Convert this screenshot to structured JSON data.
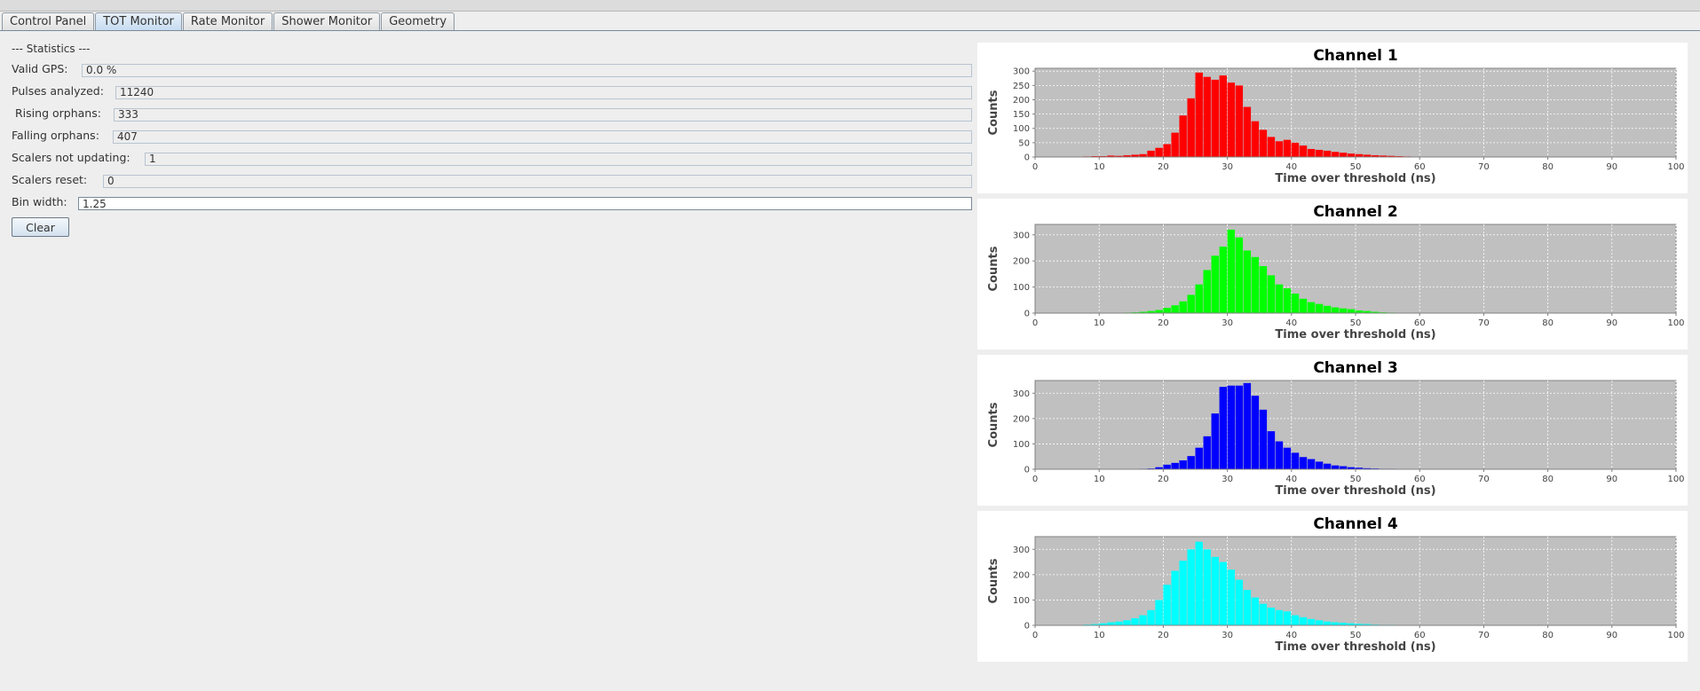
{
  "tabs": [
    {
      "label": "Control Panel",
      "active": false
    },
    {
      "label": "TOT Monitor",
      "active": true
    },
    {
      "label": "Rate Monitor",
      "active": false
    },
    {
      "label": "Shower Monitor",
      "active": false
    },
    {
      "label": "Geometry",
      "active": false
    }
  ],
  "statistics": {
    "heading": "--- Statistics ---",
    "valid_gps": {
      "label": "Valid GPS:",
      "value": "0.0 %"
    },
    "pulses_analyzed": {
      "label": "Pulses analyzed:",
      "value": "11240"
    },
    "rising_orphans": {
      "label": "Rising orphans:",
      "value": "333"
    },
    "falling_orphans": {
      "label": "Falling orphans:",
      "value": "407"
    },
    "scalers_not_updating": {
      "label": "Scalers not updating:",
      "value": "1"
    },
    "scalers_reset": {
      "label": "Scalers reset:",
      "value": "0"
    },
    "bin_width": {
      "label": "Bin width:",
      "value": "1.25"
    },
    "clear_label": "Clear"
  },
  "chart_data": [
    {
      "type": "bar",
      "title": "Channel 1",
      "xlabel": "Time over threshold (ns)",
      "ylabel": "Counts",
      "color": "#ff0000",
      "bin_width": 1.25,
      "bin_start": 0,
      "xlim": [
        0,
        100
      ],
      "ylim": [
        0,
        310
      ],
      "xticks": [
        0,
        10,
        20,
        30,
        40,
        50,
        60,
        70,
        80,
        90,
        100
      ],
      "yticks": [
        0,
        50,
        100,
        150,
        200,
        250,
        300
      ],
      "values": [
        0,
        0,
        0,
        0,
        0,
        0,
        2,
        3,
        3,
        5,
        4,
        6,
        8,
        10,
        22,
        32,
        45,
        85,
        145,
        205,
        295,
        280,
        270,
        285,
        260,
        250,
        175,
        125,
        95,
        70,
        55,
        60,
        50,
        40,
        28,
        25,
        22,
        18,
        15,
        12,
        10,
        8,
        6,
        5,
        4,
        3,
        2,
        1,
        1,
        0,
        0,
        0,
        0,
        0,
        0,
        0,
        0,
        0,
        0,
        0,
        0,
        0,
        0,
        0,
        0,
        0,
        0,
        0,
        0,
        0,
        0,
        0,
        0,
        0,
        0,
        0,
        0,
        0,
        0,
        0
      ],
      "grid": true
    },
    {
      "type": "bar",
      "title": "Channel 2",
      "xlabel": "Time over threshold (ns)",
      "ylabel": "Counts",
      "color": "#00ff00",
      "bin_width": 1.25,
      "bin_start": 0,
      "xlim": [
        0,
        100
      ],
      "ylim": [
        0,
        340
      ],
      "xticks": [
        0,
        10,
        20,
        30,
        40,
        50,
        60,
        70,
        80,
        90,
        100
      ],
      "yticks": [
        0,
        100,
        200,
        300
      ],
      "values": [
        0,
        0,
        0,
        0,
        0,
        0,
        0,
        0,
        0,
        0,
        0,
        2,
        3,
        5,
        8,
        12,
        20,
        30,
        45,
        70,
        110,
        165,
        220,
        255,
        320,
        290,
        240,
        215,
        180,
        145,
        110,
        95,
        75,
        55,
        42,
        35,
        28,
        22,
        18,
        15,
        10,
        8,
        5,
        3,
        2,
        1,
        0,
        0,
        0,
        0,
        0,
        0,
        0,
        0,
        0,
        0,
        0,
        0,
        0,
        0,
        0,
        0,
        0,
        0,
        0,
        0,
        0,
        0,
        0,
        0,
        0,
        0,
        0,
        0,
        0,
        0,
        0,
        0,
        0,
        0
      ],
      "grid": true
    },
    {
      "type": "bar",
      "title": "Channel 3",
      "xlabel": "Time over threshold (ns)",
      "ylabel": "Counts",
      "color": "#0000ff",
      "bin_width": 1.25,
      "bin_start": 0,
      "xlim": [
        0,
        100
      ],
      "ylim": [
        0,
        350
      ],
      "xticks": [
        0,
        10,
        20,
        30,
        40,
        50,
        60,
        70,
        80,
        90,
        100
      ],
      "yticks": [
        0,
        100,
        200,
        300
      ],
      "values": [
        0,
        0,
        0,
        0,
        0,
        0,
        0,
        0,
        0,
        0,
        0,
        0,
        0,
        2,
        3,
        8,
        18,
        25,
        35,
        52,
        85,
        130,
        220,
        325,
        330,
        330,
        340,
        290,
        235,
        150,
        110,
        85,
        65,
        48,
        40,
        30,
        22,
        15,
        12,
        8,
        6,
        4,
        3,
        2,
        2,
        1,
        1,
        0,
        0,
        0,
        0,
        0,
        0,
        0,
        0,
        0,
        0,
        0,
        0,
        0,
        0,
        0,
        0,
        0,
        0,
        0,
        0,
        0,
        0,
        0,
        0,
        0,
        0,
        0,
        0,
        0,
        0,
        0,
        0,
        0
      ],
      "grid": true
    },
    {
      "type": "bar",
      "title": "Channel 4",
      "xlabel": "Time over threshold (ns)",
      "ylabel": "Counts",
      "color": "#00ffff",
      "bin_width": 1.25,
      "bin_start": 0,
      "xlim": [
        0,
        100
      ],
      "ylim": [
        0,
        350
      ],
      "xticks": [
        0,
        10,
        20,
        30,
        40,
        50,
        60,
        70,
        80,
        90,
        100
      ],
      "yticks": [
        0,
        100,
        200,
        300
      ],
      "values": [
        0,
        0,
        0,
        0,
        0,
        0,
        3,
        5,
        8,
        12,
        15,
        20,
        28,
        40,
        60,
        100,
        160,
        215,
        255,
        300,
        330,
        300,
        270,
        250,
        220,
        180,
        140,
        110,
        85,
        70,
        60,
        55,
        40,
        32,
        25,
        20,
        15,
        12,
        10,
        8,
        6,
        5,
        3,
        2,
        2,
        1,
        1,
        0,
        0,
        0,
        0,
        0,
        0,
        0,
        0,
        0,
        0,
        0,
        0,
        0,
        0,
        0,
        0,
        0,
        0,
        0,
        0,
        0,
        0,
        0,
        0,
        0,
        0,
        0,
        0,
        0,
        0,
        0,
        0,
        0
      ],
      "grid": true
    }
  ]
}
